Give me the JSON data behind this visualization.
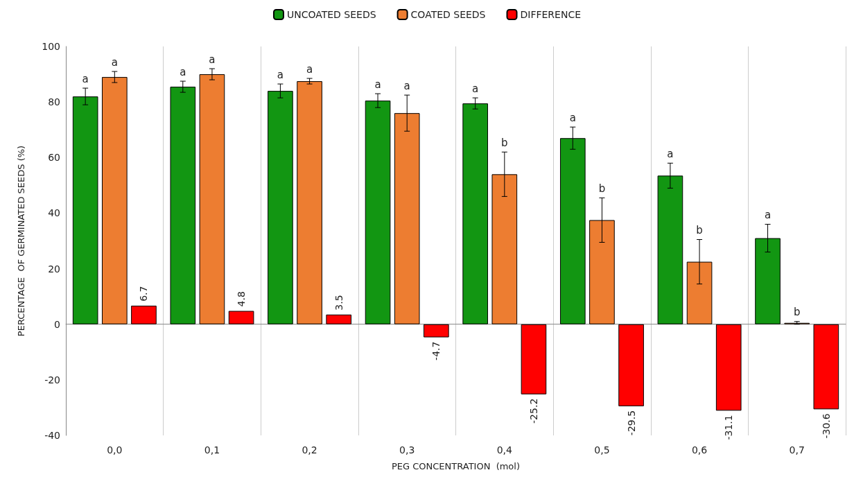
{
  "chart_data": {
    "type": "bar",
    "xlabel": "PEG CONCENTRATION  (mol)",
    "ylabel": "PERCENTAGE  OF GERMINATED SEEDS (%)",
    "categories": [
      "0,0",
      "0,1",
      "0,2",
      "0,3",
      "0,4",
      "0,5",
      "0,6",
      "0,7"
    ],
    "series": [
      {
        "name": "UNCOATED SEEDS",
        "color": "#129612",
        "values": [
          82,
          85.5,
          84,
          80.5,
          79.5,
          67,
          53.5,
          31
        ],
        "errors": [
          3,
          2,
          2.5,
          2.5,
          2,
          4,
          4.5,
          5
        ]
      },
      {
        "name": "COATED SEEDS",
        "color": "#ed7d31",
        "values": [
          89,
          90,
          87.5,
          76,
          54,
          37.5,
          22.5,
          0.5
        ],
        "errors": [
          2,
          2,
          1,
          6.5,
          8,
          8,
          8,
          0.5
        ]
      },
      {
        "name": "DIFFERENCE",
        "color": "#ff0000",
        "values": [
          6.7,
          4.8,
          3.5,
          -4.7,
          -25.2,
          -29.5,
          -31.1,
          -30.6
        ],
        "value_labels": [
          "6.7",
          "4.8",
          "3.5",
          "-4.7",
          "-25.2",
          "-29.5",
          "-31.1",
          "-30.6"
        ]
      }
    ],
    "annotations": [
      "a",
      "a",
      "a",
      "a",
      "a",
      "a",
      "a",
      "a",
      "a",
      "b",
      "a",
      "b",
      "a",
      "b",
      "a",
      "b"
    ],
    "ylim": [
      -40,
      100
    ],
    "yticks": [
      -40,
      -20,
      0,
      20,
      40,
      60,
      80,
      100
    ],
    "grid": "x",
    "legend": "top"
  }
}
